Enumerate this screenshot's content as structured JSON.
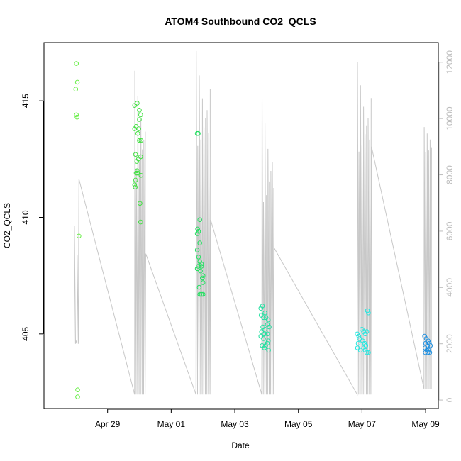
{
  "chart_data": {
    "type": "scatter",
    "title": "ATOM4 Southbound CO2_QCLS",
    "xlabel": "Date",
    "ylabel": "CO2_QCLS",
    "x_unit": "days since Apr 28 2018 00:00",
    "x_range": [
      -1.0,
      11.4
    ],
    "x_ticks": [
      {
        "x": 1,
        "label": "Apr 29"
      },
      {
        "x": 3,
        "label": "May 01"
      },
      {
        "x": 5,
        "label": "May 03"
      },
      {
        "x": 7,
        "label": "May 05"
      },
      {
        "x": 9,
        "label": "May 07"
      },
      {
        "x": 11,
        "label": "May 09"
      }
    ],
    "y_range": [
      401.8,
      417.5
    ],
    "y_ticks": [
      405,
      410,
      415
    ],
    "y2_range": [
      -300,
      12700
    ],
    "y2_ticks": [
      0,
      2000,
      4000,
      6000,
      8000,
      10000,
      12000
    ],
    "grid": false,
    "altitude_series": {
      "color": "#c8c8c8",
      "flights": [
        {
          "start": -0.05,
          "end": 0.08,
          "n": 4,
          "top": 6200,
          "top_lo": 2100,
          "bottom": 2000,
          "connect_to": 7850
        },
        {
          "start": 1.85,
          "end": 2.18,
          "n": 8,
          "top": 11700,
          "top_lo": 8200,
          "bottom": 200,
          "connect_to": 5200
        },
        {
          "start": 3.78,
          "end": 4.22,
          "n": 10,
          "top": 12400,
          "top_lo": 9000,
          "bottom": 200,
          "connect_to": 6400
        },
        {
          "start": 5.85,
          "end": 6.22,
          "n": 9,
          "top": 10800,
          "top_lo": 7000,
          "bottom": 200,
          "connect_to": 5400
        },
        {
          "start": 8.85,
          "end": 9.28,
          "n": 10,
          "top": 12000,
          "top_lo": 8800,
          "bottom": 200,
          "connect_to": 9000
        },
        {
          "start": 10.95,
          "end": 11.18,
          "n": 6,
          "top": 9700,
          "top_lo": 8800,
          "bottom": 400,
          "connect_to": null
        }
      ]
    },
    "series": [
      {
        "color": "#66ee44",
        "points": [
          [
            0.02,
            416.6
          ],
          [
            0.05,
            415.8
          ],
          [
            0.0,
            415.5
          ],
          [
            0.02,
            414.4
          ],
          [
            0.04,
            414.3
          ],
          [
            0.1,
            409.2
          ],
          [
            0.06,
            402.6
          ],
          [
            0.06,
            402.3
          ]
        ]
      },
      {
        "color": "#44e044",
        "points": [
          [
            1.85,
            414.8
          ],
          [
            1.93,
            414.9
          ],
          [
            2.0,
            414.6
          ],
          [
            2.04,
            414.4
          ],
          [
            2.0,
            414.2
          ],
          [
            1.9,
            413.9
          ],
          [
            1.85,
            413.8
          ],
          [
            1.98,
            413.8
          ],
          [
            1.95,
            413.6
          ],
          [
            2.05,
            413.3
          ],
          [
            2.0,
            413.3
          ],
          [
            1.88,
            412.7
          ],
          [
            1.97,
            412.5
          ],
          [
            2.04,
            412.6
          ],
          [
            1.92,
            412.4
          ],
          [
            1.93,
            412.0
          ],
          [
            1.9,
            411.9
          ],
          [
            1.94,
            411.9
          ],
          [
            1.88,
            411.6
          ],
          [
            1.85,
            411.4
          ],
          [
            1.87,
            411.3
          ],
          [
            2.05,
            411.8
          ],
          [
            2.02,
            410.6
          ],
          [
            2.04,
            409.8
          ]
        ]
      },
      {
        "color": "#22e060",
        "points": [
          [
            3.82,
            413.6
          ],
          [
            3.85,
            413.6
          ],
          [
            3.9,
            409.9
          ],
          [
            3.83,
            409.5
          ],
          [
            3.86,
            409.4
          ],
          [
            3.82,
            409.3
          ],
          [
            3.9,
            408.9
          ],
          [
            3.82,
            408.6
          ],
          [
            3.86,
            408.3
          ],
          [
            3.9,
            408.1
          ],
          [
            3.95,
            408.0
          ],
          [
            3.85,
            407.9
          ],
          [
            3.82,
            407.8
          ],
          [
            3.95,
            407.9
          ],
          [
            3.92,
            407.7
          ],
          [
            4.0,
            407.5
          ],
          [
            3.98,
            407.4
          ],
          [
            4.0,
            407.2
          ],
          [
            3.88,
            407.0
          ],
          [
            3.9,
            406.7
          ],
          [
            3.95,
            406.7
          ],
          [
            4.0,
            406.7
          ]
        ]
      },
      {
        "color": "#22e0a0",
        "points": [
          [
            5.82,
            406.1
          ],
          [
            5.87,
            406.2
          ],
          [
            5.95,
            405.9
          ],
          [
            5.83,
            405.8
          ],
          [
            5.9,
            405.7
          ],
          [
            5.98,
            405.7
          ],
          [
            6.05,
            405.6
          ],
          [
            6.02,
            405.4
          ],
          [
            5.88,
            405.3
          ],
          [
            5.95,
            405.2
          ],
          [
            6.08,
            405.3
          ],
          [
            5.84,
            405.1
          ],
          [
            5.93,
            405.0
          ],
          [
            6.03,
            405.0
          ],
          [
            5.82,
            404.9
          ],
          [
            5.9,
            404.8
          ],
          [
            6.05,
            404.7
          ],
          [
            5.86,
            404.5
          ],
          [
            5.97,
            404.5
          ],
          [
            6.02,
            404.6
          ],
          [
            5.93,
            404.4
          ],
          [
            6.06,
            404.3
          ]
        ]
      },
      {
        "color": "#22e8e0",
        "points": [
          [
            9.17,
            406.0
          ],
          [
            9.2,
            405.9
          ],
          [
            8.85,
            405.0
          ],
          [
            8.9,
            404.9
          ],
          [
            9.0,
            405.2
          ],
          [
            9.05,
            405.1
          ],
          [
            9.1,
            405.0
          ],
          [
            9.15,
            405.1
          ],
          [
            8.92,
            404.8
          ],
          [
            9.02,
            404.7
          ],
          [
            9.08,
            404.6
          ],
          [
            8.88,
            404.6
          ],
          [
            9.12,
            404.5
          ],
          [
            8.86,
            404.4
          ],
          [
            8.95,
            404.3
          ],
          [
            9.05,
            404.4
          ],
          [
            9.1,
            404.3
          ],
          [
            9.15,
            404.2
          ],
          [
            9.2,
            404.2
          ]
        ]
      },
      {
        "color": "#2090e0",
        "points": [
          [
            10.97,
            404.9
          ],
          [
            11.02,
            404.8
          ],
          [
            11.08,
            404.7
          ],
          [
            11.0,
            404.6
          ],
          [
            11.06,
            404.5
          ],
          [
            11.12,
            404.6
          ],
          [
            10.98,
            404.4
          ],
          [
            11.04,
            404.3
          ],
          [
            11.1,
            404.3
          ],
          [
            11.15,
            404.5
          ],
          [
            10.99,
            404.2
          ],
          [
            11.07,
            404.2
          ],
          [
            11.13,
            404.2
          ]
        ]
      }
    ]
  }
}
